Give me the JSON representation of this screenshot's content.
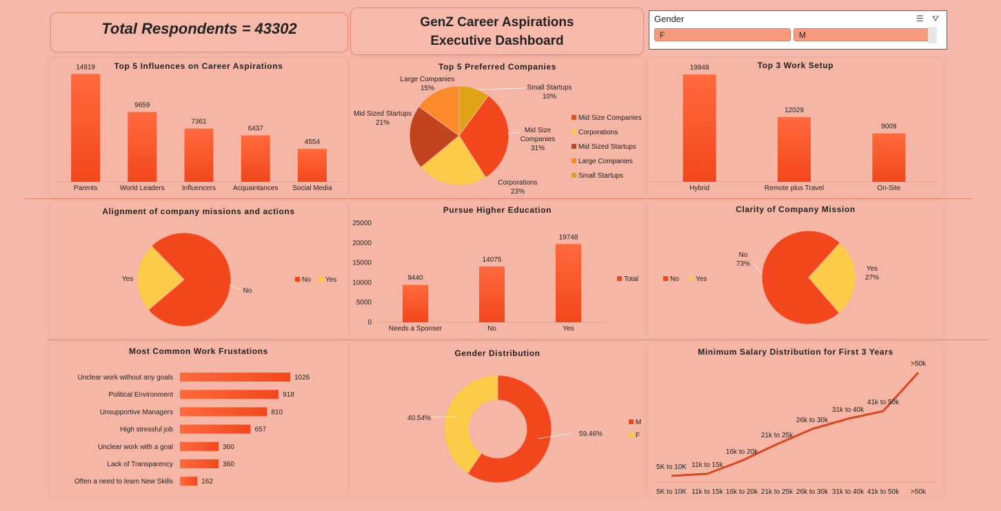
{
  "header": {
    "total_respondents": "Total Respondents = 43302",
    "dashboard_title": "GenZ Career Aspirations Executive Dashboard"
  },
  "slicer": {
    "title": "Gender",
    "options": [
      "F",
      "M"
    ]
  },
  "colors": {
    "red": "#f2471d",
    "yellow": "#fccb47",
    "dark_red": "#c2441f",
    "orange": "#fa8a2a",
    "gold": "#dfa418",
    "background": "#f4b9aa"
  },
  "chart_data": [
    {
      "id": "influences",
      "type": "bar",
      "title": "Top 5 Influences on Career Aspirations",
      "categories": [
        "Parents",
        "World Leaders",
        "Influencers",
        "Acquaintances",
        "Social Media"
      ],
      "values": [
        14919,
        9659,
        7361,
        6437,
        4554
      ],
      "ylim": [
        0,
        16000
      ]
    },
    {
      "id": "companies",
      "type": "pie",
      "title": "Top 5 Preferred Companies",
      "slices": [
        {
          "label": "Mid Size Companies",
          "display": "Mid Size Companies",
          "value": 31
        },
        {
          "label": "Corporations",
          "display": "Corporations",
          "value": 23
        },
        {
          "label": "Mid Sized Startups",
          "display": "Mid Sized Startups",
          "value": 21
        },
        {
          "label": "Large Companies",
          "display": "Large Companies",
          "value": 15
        },
        {
          "label": "Small Startups",
          "display": "Small Startups",
          "value": 10
        }
      ],
      "legend": "right"
    },
    {
      "id": "worksetup",
      "type": "bar",
      "title": "Top 3 Work Setup",
      "categories": [
        "Hybrid",
        "Remote plus Travel",
        "On-Site"
      ],
      "values": [
        19948,
        12029,
        9009
      ],
      "ylim": [
        0,
        21500
      ]
    },
    {
      "id": "alignment",
      "type": "pie",
      "title": "Alignment of company missions and actions",
      "slices": [
        {
          "label": "No",
          "value": 76
        },
        {
          "label": "Yes",
          "value": 24
        }
      ],
      "legend": "right"
    },
    {
      "id": "education",
      "type": "bar",
      "title": "Pursue Higher Education",
      "categories": [
        "Needs a Sponser",
        "No",
        "Yes"
      ],
      "values": [
        9440,
        14075,
        19748
      ],
      "ylim": [
        0,
        25000
      ],
      "yticks": [
        0,
        5000,
        10000,
        15000,
        20000,
        25000
      ],
      "series_name": "Total",
      "legend": "right"
    },
    {
      "id": "clarity",
      "type": "pie",
      "title": "Clarity of Company Mission",
      "slices": [
        {
          "label": "No",
          "value": 73
        },
        {
          "label": "Yes",
          "value": 27
        }
      ],
      "legend": "left"
    },
    {
      "id": "frustrations",
      "type": "bar",
      "orientation": "horizontal",
      "title": "Most Common Work Frustations",
      "categories": [
        "Unclear work without any goals",
        "Political Environment",
        "Unsupportive Managers",
        "High stressful job",
        "Unclear work with a goal",
        "Lack of Transparency",
        "Often a need to learn New Skills"
      ],
      "values": [
        1026,
        918,
        810,
        657,
        360,
        360,
        162
      ],
      "xlim": [
        0,
        1100
      ]
    },
    {
      "id": "gender",
      "type": "donut",
      "title": "Gender Distribution",
      "slices": [
        {
          "label": "M",
          "value": 59.46
        },
        {
          "label": "F",
          "value": 40.54
        }
      ],
      "legend": "right"
    },
    {
      "id": "salary",
      "type": "line",
      "title": "Minimum Salary Distribution for First 3 Years",
      "categories": [
        "5K to 10K",
        "11k to 15k",
        "16k to 20k",
        "21k to 25k",
        "26k to 30k",
        "31k to 40k",
        "41k to 50k",
        ">50k"
      ]
    }
  ]
}
